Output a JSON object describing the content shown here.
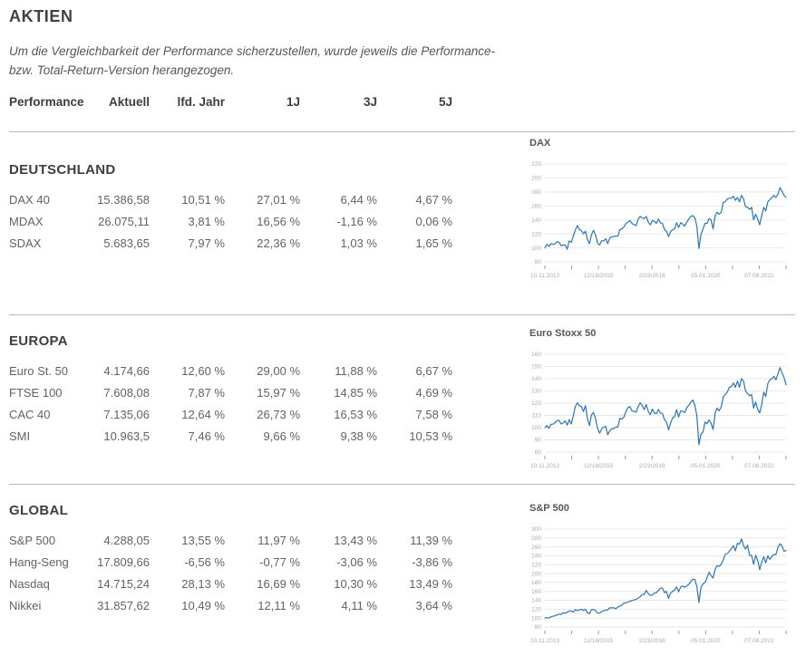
{
  "page": {
    "title": "AKTIEN",
    "subtitle_lines": [
      "Um die Vergleichbarkeit der Performance sicherzustellen, wurde jeweils die Performance-",
      "bzw. Total-Return-Version herangezogen."
    ]
  },
  "table": {
    "headers": [
      "Performance",
      "Aktuell",
      "lfd. Jahr",
      "1J",
      "3J",
      "5J"
    ]
  },
  "sections": [
    {
      "title": "DEUTSCHLAND",
      "rows": [
        {
          "name": "DAX 40",
          "values": [
            "15.386,58",
            "10,51 %",
            "27,01 %",
            "6,44 %",
            "4,67 %"
          ]
        },
        {
          "name": "MDAX",
          "values": [
            "26.075,11",
            "3,81 %",
            "16,56 %",
            "-1,16 %",
            "0,06 %"
          ]
        },
        {
          "name": "SDAX",
          "values": [
            "5.683,65",
            "7,97 %",
            "22,36 %",
            "1,03 %",
            "1,65 %"
          ]
        }
      ]
    },
    {
      "title": "EUROPA",
      "rows": [
        {
          "name": "Euro St. 50",
          "values": [
            "4.174,66",
            "12,60 %",
            "29,00 %",
            "11,88 %",
            "6,67 %"
          ]
        },
        {
          "name": "FTSE 100",
          "values": [
            "7.608,08",
            "7,87 %",
            "15,97 %",
            "14,85 %",
            "4,69 %"
          ]
        },
        {
          "name": "CAC 40",
          "values": [
            "7.135,06",
            "12,64 %",
            "26,73 %",
            "16,53 %",
            "7,58 %"
          ]
        },
        {
          "name": "SMI",
          "values": [
            "10.963,5",
            "7,46 %",
            "9,66 %",
            "9,38 %",
            "10,53 %"
          ]
        }
      ]
    },
    {
      "title": "GLOBAL",
      "rows": [
        {
          "name": "S&P 500",
          "values": [
            "4.288,05",
            "13,55 %",
            "11,97 %",
            "13,43 %",
            "11,39 %"
          ]
        },
        {
          "name": "Hang-Seng",
          "values": [
            "17.809,66",
            "-6,56 %",
            "-0,77 %",
            "-3,06 %",
            "-3,86 %"
          ]
        },
        {
          "name": "Nasdaq",
          "values": [
            "14.715,24",
            "28,13 %",
            "16,69 %",
            "10,30 %",
            "13,49 %"
          ]
        },
        {
          "name": "Nikkei",
          "values": [
            "31.857,62",
            "10,49 %",
            "12,11 %",
            "4,11 %",
            "3,64 %"
          ]
        }
      ]
    }
  ],
  "chart_data": [
    {
      "type": "line",
      "title": "DAX",
      "color": "#2e75b6",
      "grid": true,
      "ylim": [
        80,
        220
      ],
      "yticks": [
        220,
        200,
        180,
        160,
        140,
        120,
        100,
        80
      ],
      "xlabels": [
        "10.11.2013",
        "12/18/2015",
        "2/23/2018",
        "05.01.2020",
        "07.08.2022"
      ],
      "values": [
        100,
        105,
        102,
        106,
        105,
        105.5,
        109,
        108,
        103,
        104,
        104,
        98,
        110,
        108,
        117,
        125,
        132,
        126,
        125,
        120,
        124,
        112,
        106,
        119,
        125,
        118,
        107,
        104,
        110,
        110,
        113,
        106,
        114,
        116,
        116,
        117,
        117,
        126,
        127,
        130,
        135,
        137,
        139,
        135,
        133,
        132,
        141,
        145,
        143,
        142,
        145,
        137,
        133,
        139,
        138,
        135,
        141,
        136,
        135,
        126,
        124,
        116,
        123,
        126,
        127,
        136,
        129,
        136,
        134,
        131,
        137,
        141,
        145,
        146,
        143,
        131,
        99,
        119,
        127,
        135,
        135,
        142,
        140,
        127,
        146,
        151,
        148,
        151,
        165,
        166,
        170,
        171,
        171,
        174,
        168,
        172,
        166,
        175,
        170,
        159,
        158,
        155,
        158,
        140,
        148,
        141,
        133,
        146,
        158,
        153,
        166,
        169,
        172,
        175,
        172,
        177,
        186,
        181,
        175,
        172
      ]
    },
    {
      "type": "line",
      "title": "Euro Stoxx 50",
      "color": "#2e75b6",
      "grid": true,
      "ylim": [
        80,
        160
      ],
      "yticks": [
        160,
        150,
        140,
        130,
        120,
        110,
        100,
        90,
        80
      ],
      "xlabels": [
        "10.11.2013",
        "12/18/2015",
        "2/23/2018",
        "05.01.2020",
        "07.08.2022"
      ],
      "values": [
        100,
        101.7,
        99.5,
        102.6,
        102.9,
        103.9,
        105.8,
        106,
        103,
        103.7,
        105.5,
        102,
        106.6,
        103,
        109.6,
        117,
        120.4,
        117.8,
        117.4,
        113.2,
        118,
        107.5,
        101.6,
        110.5,
        112.4,
        107,
        99.5,
        95.5,
        98.9,
        100.4,
        101.1,
        94.2,
        97.5,
        99.2,
        99.2,
        100.6,
        100.4,
        107.7,
        106.9,
        108.8,
        113,
        116.5,
        117.2,
        113.5,
        113.5,
        112.6,
        117.2,
        120.4,
        118.3,
        114.7,
        118.8,
        113.3,
        110.5,
        115.2,
        112,
        111.3,
        114.9,
        111.9,
        111.6,
        106.5,
        104.5,
        98.2,
        103.5,
        107.9,
        109.1,
        114.7,
        108.7,
        113.8,
        113.4,
        112.3,
        116.5,
        118.3,
        120.8,
        122.5,
        118.2,
        109.9,
        86,
        94.5,
        96.5,
        104.5,
        103.2,
        106.3,
        103.5,
        98.5,
        112,
        116,
        113.7,
        117,
        125,
        127,
        129,
        133,
        133.5,
        136.5,
        133,
        138,
        133,
        140,
        138,
        130,
        128,
        126,
        127,
        116,
        121,
        115,
        112,
        119,
        129,
        125.5,
        136,
        139,
        140,
        142,
        139,
        144,
        149,
        145,
        141,
        135
      ]
    },
    {
      "type": "line",
      "title": "S&P 500",
      "color": "#2e75b6",
      "grid": true,
      "ylim": [
        80,
        300
      ],
      "yticks": [
        300,
        280,
        260,
        240,
        220,
        200,
        180,
        160,
        140,
        120,
        100,
        80
      ],
      "xlabels": [
        "10.11.2013",
        "12/18/2015",
        "2/23/2018",
        "05.01.2020",
        "07.08.2022"
      ],
      "values": [
        100,
        101,
        100,
        103,
        104,
        105,
        107,
        109,
        108,
        112,
        111,
        113,
        116,
        116,
        113,
        119,
        117,
        118,
        120,
        117,
        120,
        112,
        110,
        119,
        119,
        117,
        111,
        111,
        115,
        116,
        118,
        118,
        123,
        123,
        123,
        121,
        125,
        127,
        129,
        134,
        134,
        136,
        138,
        139,
        141,
        142,
        145,
        148,
        153,
        153,
        162,
        155,
        151,
        152,
        156,
        157,
        162,
        167,
        168,
        157,
        160,
        144,
        156,
        160,
        163,
        170,
        159,
        170,
        172,
        169,
        172,
        176,
        182,
        187,
        187,
        171,
        135,
        169,
        177,
        180,
        190,
        203,
        195,
        190,
        210,
        218,
        216,
        221,
        231,
        243,
        245,
        250,
        256,
        263,
        251,
        268,
        266,
        278,
        263,
        255,
        264,
        241,
        241,
        221,
        241,
        230,
        209,
        226,
        238,
        224,
        240,
        232,
        239,
        243,
        243,
        259,
        267,
        262,
        250,
        252
      ]
    }
  ]
}
